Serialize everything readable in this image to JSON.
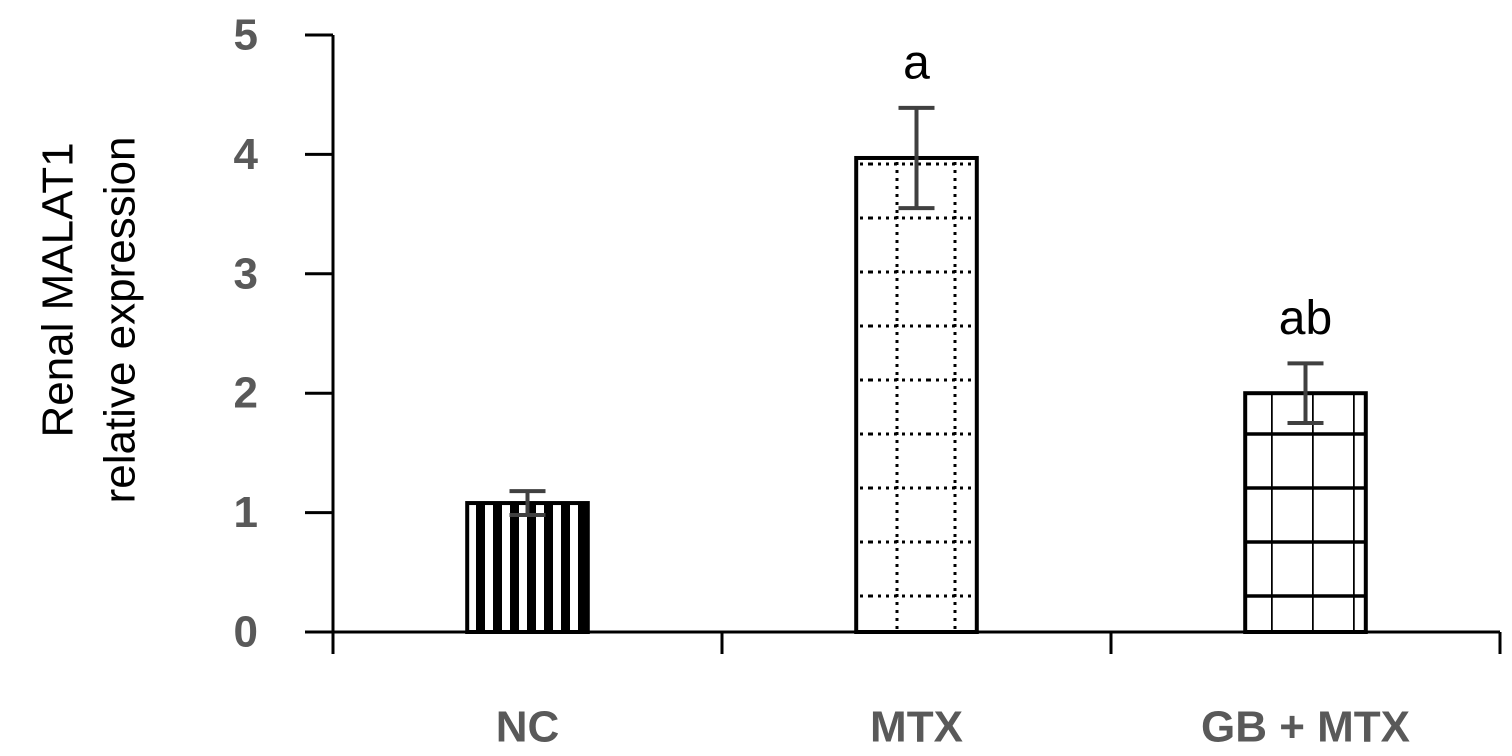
{
  "chart_data": {
    "type": "bar",
    "ylabel_lines": [
      "Renal MALAT1",
      "relative expression"
    ],
    "categories": [
      "NC",
      "MTX",
      "GB + MTX"
    ],
    "values": [
      1.08,
      3.97,
      2.0
    ],
    "errors": [
      0.1,
      0.42,
      0.25
    ],
    "annotations": [
      "",
      "a",
      "ab"
    ],
    "patterns": [
      "vertical-stripes",
      "dotted-grid",
      "grid"
    ],
    "ylim": [
      0,
      5
    ],
    "yticks": [
      0,
      1,
      2,
      3,
      4,
      5
    ],
    "ytick_labels": [
      "0",
      "1",
      "2",
      "3",
      "4",
      "5"
    ],
    "grid": false,
    "colors": {
      "bar_fill": "#ffffff",
      "bar_stroke": "#000000",
      "error_bar": "#404040",
      "tick_label": "#595959"
    }
  }
}
